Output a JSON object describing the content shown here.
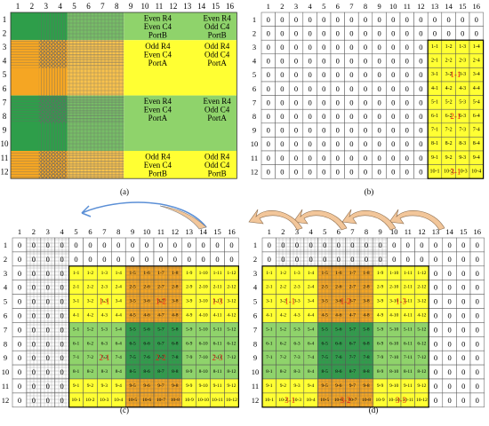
{
  "panel_labels": {
    "a": "(a)",
    "b": "(b)",
    "c": "(c)",
    "d": "(d)"
  },
  "colors": {
    "green_dark": "#2e9e4a",
    "green_light": "#8fd36b",
    "yellow": "#ffff33",
    "orange": "#f5a623",
    "red_text": "#e8221b",
    "arrow_fill": "#f2c69a",
    "arrow_blue": "#5b8fd6",
    "cell_border": "#333333"
  },
  "col_numbers": [
    "1",
    "2",
    "3",
    "4",
    "5",
    "6",
    "7",
    "8",
    "9",
    "10",
    "11",
    "12",
    "13",
    "14",
    "15",
    "16"
  ],
  "row_numbers": [
    "1",
    "2",
    "3",
    "4",
    "5",
    "6",
    "7",
    "8",
    "9",
    "10",
    "11",
    "12"
  ],
  "panel_a": {
    "quadrant_labels": [
      {
        "lines": [
          "Even R4",
          "Even C4",
          "PortB"
        ]
      },
      {
        "lines": [
          "Even R4",
          "Odd C4",
          "PortB"
        ]
      },
      {
        "lines": [
          "Odd R4",
          "Even C4",
          "PortA"
        ]
      },
      {
        "lines": [
          "Odd R4",
          "Odd C4",
          "PortA"
        ]
      },
      {
        "lines": [
          "Even R4",
          "Even C4",
          "PortA"
        ]
      },
      {
        "lines": [
          "Even R4",
          "Odd C4",
          "PortA"
        ]
      },
      {
        "lines": [
          "Odd R4",
          "Even C4",
          "PortB"
        ]
      },
      {
        "lines": [
          "Odd R4",
          "Odd C4",
          "PortB"
        ]
      }
    ]
  },
  "zero_value": "0",
  "block_labels": {
    "b": [
      "1-1",
      "2-1",
      "3-1"
    ],
    "c": [
      "1-1",
      "1-2",
      "1-3",
      "2-1",
      "2-2",
      "2-3"
    ],
    "d": [
      "1-1",
      "1-2",
      "1-3",
      "3-1",
      "3-2",
      "3-3"
    ]
  }
}
